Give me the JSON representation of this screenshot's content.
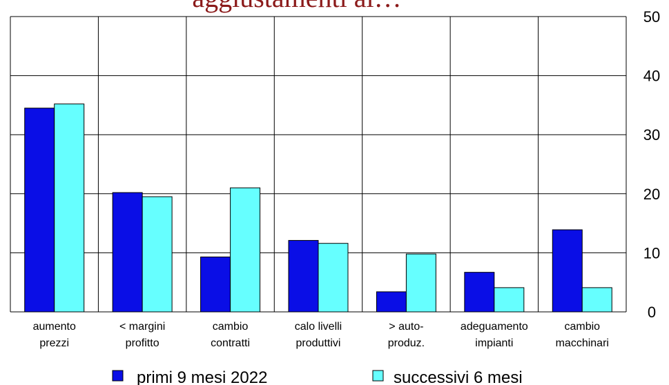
{
  "chart_data": {
    "type": "bar",
    "title": "aggiustamenti al…",
    "title_partial": true,
    "categories": [
      [
        "aumento",
        "prezzi"
      ],
      [
        "< margini",
        "profitto"
      ],
      [
        "cambio",
        "contratti"
      ],
      [
        "calo livelli",
        "produttivi"
      ],
      [
        "> auto-",
        "produz."
      ],
      [
        "adeguamento",
        "impianti"
      ],
      [
        "cambio",
        "macchinari"
      ]
    ],
    "series": [
      {
        "name": "primi 9 mesi 2022",
        "color": "#0a0ee6",
        "values": [
          34.5,
          20.2,
          9.3,
          12.1,
          3.4,
          6.7,
          13.9
        ]
      },
      {
        "name": "successivi 6 mesi",
        "color": "#66ffff",
        "values": [
          35.2,
          19.5,
          21.0,
          11.6,
          9.8,
          4.1,
          4.1
        ]
      }
    ],
    "y_ticks": [
      "0",
      "10",
      "20",
      "30",
      "40",
      "50"
    ],
    "ylim": [
      0,
      50
    ],
    "y_axis_side": "right",
    "grid": true,
    "legend_position": "bottom"
  }
}
